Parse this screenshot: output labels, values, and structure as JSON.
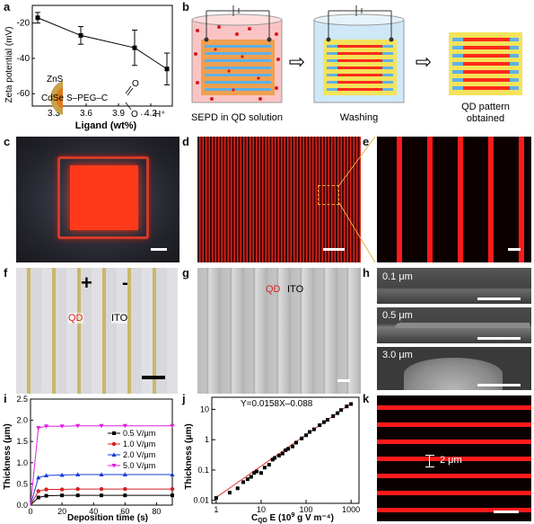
{
  "panels": {
    "a": {
      "label": "a",
      "xlabel": "Ligand (wt%)",
      "ylabel": "Zeta potential (mV)",
      "xticks": [
        "3.3",
        "3.6",
        "3.9",
        "4.2"
      ],
      "yticks": [
        "-20",
        "-40",
        "-60"
      ],
      "inset": {
        "shell": "ZnS",
        "core": "CdSe",
        "chain": "S–PEG–C",
        "o_top": "O",
        "o_bot": "O",
        "hplus": "H⁺",
        "dots": "···"
      }
    },
    "b": {
      "label": "b",
      "step1": "SEPD in QD solution",
      "step2": "Washing",
      "step3_line1": "QD pattern",
      "step3_line2": "obtained",
      "arrow": "⇨"
    },
    "c": {
      "label": "c"
    },
    "d": {
      "label": "d"
    },
    "e": {
      "label": "e"
    },
    "f": {
      "label": "f",
      "plus": "+",
      "minus": "-",
      "qd": "QD",
      "ito": "ITO"
    },
    "g": {
      "label": "g",
      "qd": "QD",
      "ito": "ITO"
    },
    "h": {
      "label": "h",
      "t1": "0.1 μm",
      "t2": "0.5 μm",
      "t3": "3.0 μm"
    },
    "i": {
      "label": "i",
      "xlabel": "Deposition time (s)",
      "ylabel": "Thickness (μm)"
    },
    "j": {
      "label": "j",
      "equation": "Y=0.0158X–0.088",
      "xlabel_pre": "C",
      "xlabel_sub": "QD",
      "xlabel_post": " E (10",
      "xlabel_sup": "9",
      "xlabel_end": " g V m⁻⁴)",
      "ylabel": "Thickness (μm)"
    },
    "k": {
      "label": "k",
      "gap": "2 μm"
    }
  },
  "colors": {
    "qd_red": "#ff2a1a",
    "ito_blue": "#5fb0e8",
    "electrode_yellow": "#f4e35a"
  },
  "chart_data": [
    {
      "id": "a",
      "type": "line",
      "xlabel": "Ligand (wt%)",
      "ylabel": "Zeta potential (mV)",
      "xlim": [
        3.1,
        4.4
      ],
      "ylim": [
        -67,
        -10
      ],
      "x": [
        3.15,
        3.55,
        4.05,
        4.35
      ],
      "series": [
        {
          "values": [
            -17,
            -27,
            -34,
            -46
          ],
          "err": [
            3,
            5,
            10,
            9
          ]
        }
      ]
    },
    {
      "id": "i",
      "type": "line",
      "xlabel": "Deposition time (s)",
      "ylabel": "Thickness (μm)",
      "xlim": [
        0,
        90
      ],
      "ylim": [
        0,
        2.5
      ],
      "xticks": [
        0,
        20,
        40,
        60,
        80
      ],
      "yticks": [
        0.0,
        0.5,
        1.0,
        1.5,
        2.0,
        2.5
      ],
      "x": [
        0,
        5,
        10,
        20,
        30,
        45,
        60,
        90
      ],
      "series": [
        {
          "name": "0.5 V/μm",
          "color": "#000000",
          "marker": "square",
          "values": [
            0,
            0.18,
            0.22,
            0.23,
            0.23,
            0.23,
            0.23,
            0.23
          ]
        },
        {
          "name": "1.0 V/μm",
          "color": "#d42020",
          "marker": "circle",
          "values": [
            0,
            0.33,
            0.37,
            0.37,
            0.38,
            0.38,
            0.38,
            0.38
          ]
        },
        {
          "name": "2.0 V/μm",
          "color": "#1a3ad6",
          "marker": "triangle",
          "values": [
            0,
            0.65,
            0.7,
            0.71,
            0.72,
            0.72,
            0.72,
            0.72
          ]
        },
        {
          "name": "5.0 V/μm",
          "color": "#e020e0",
          "marker": "tri-down",
          "values": [
            0,
            1.82,
            1.86,
            1.86,
            1.87,
            1.87,
            1.87,
            1.87
          ]
        }
      ],
      "legend": "right"
    },
    {
      "id": "j",
      "type": "scatter",
      "scale": "log-log",
      "xlim": [
        0.8,
        1500
      ],
      "ylim": [
        0.008,
        25
      ],
      "xticks": [
        1,
        10,
        100,
        1000
      ],
      "yticks": [
        0.01,
        0.1,
        1,
        10
      ],
      "fit": {
        "slope": 0.0158,
        "intercept": -0.088
      },
      "x": [
        1,
        2,
        3,
        4,
        5,
        6,
        7,
        8,
        10,
        12,
        15,
        18,
        20,
        25,
        30,
        35,
        40,
        50,
        60,
        80,
        100,
        120,
        150,
        200,
        250,
        300,
        400,
        500,
        600,
        800,
        1000
      ],
      "values": [
        0.012,
        0.018,
        0.025,
        0.04,
        0.05,
        0.06,
        0.08,
        0.09,
        0.08,
        0.12,
        0.15,
        0.22,
        0.25,
        0.3,
        0.35,
        0.45,
        0.5,
        0.6,
        0.8,
        1.1,
        1.4,
        1.8,
        2.2,
        3.0,
        3.8,
        4.5,
        6.0,
        7.5,
        9.5,
        12.5,
        15.0
      ]
    }
  ]
}
